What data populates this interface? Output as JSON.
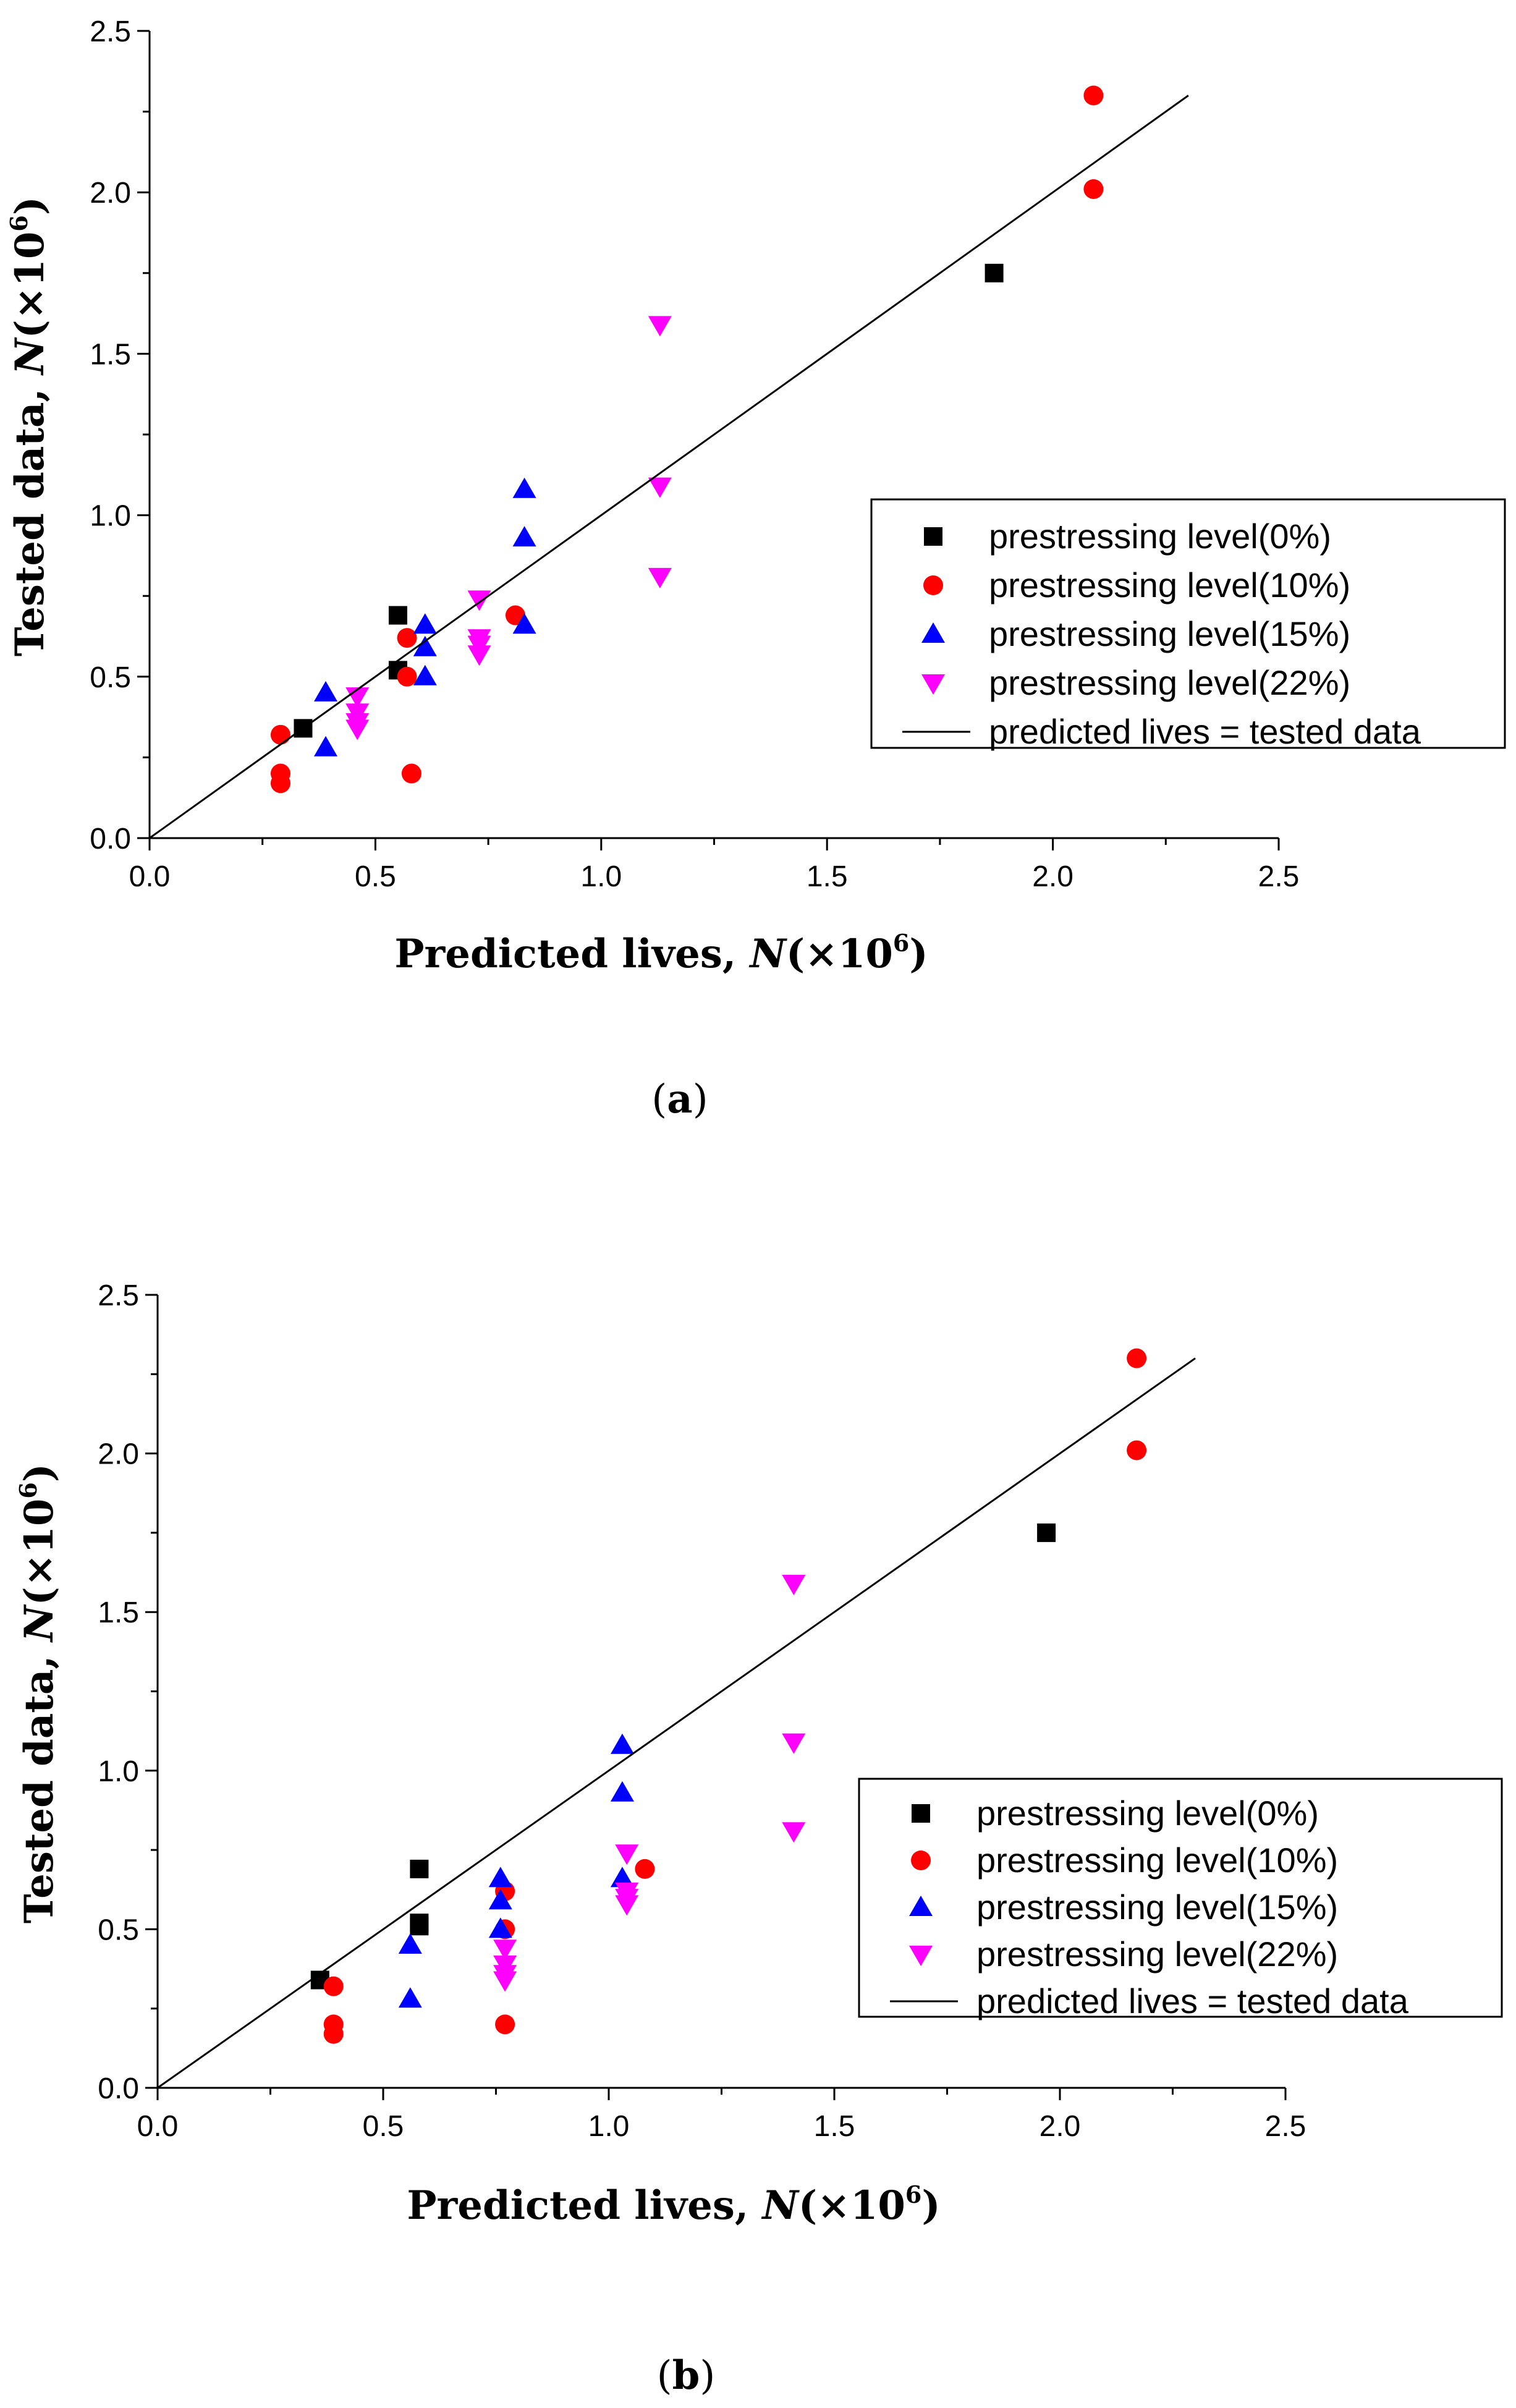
{
  "chart_data": [
    {
      "type": "scatter",
      "panel_label": "a",
      "xlabel": "Predicted lives, ",
      "ylabel": "Tested data, ",
      "n_symbol": "N",
      "unit_text": "(×10",
      "exponent": "6",
      "close_paren": ")",
      "xlim": [
        0,
        2.5
      ],
      "ylim": [
        0,
        2.5
      ],
      "x_ticks": [
        "0.0",
        "0.5",
        "1.0",
        "1.5",
        "2.0",
        "2.5"
      ],
      "y_ticks": [
        "0.0",
        "0.5",
        "1.0",
        "1.5",
        "2.0",
        "2.5"
      ],
      "legend_position": "center-right",
      "series": [
        {
          "name": "prestressing level(0%)",
          "marker": "square",
          "color": "#000000",
          "points": [
            [
              0.34,
              0.34
            ],
            [
              0.55,
              0.52
            ],
            [
              0.55,
              0.69
            ],
            [
              1.87,
              1.75
            ]
          ]
        },
        {
          "name": "prestressing level(10%)",
          "marker": "circle",
          "color": "#ff0000",
          "points": [
            [
              0.29,
              0.32
            ],
            [
              0.29,
              0.2
            ],
            [
              0.29,
              0.17
            ],
            [
              0.57,
              0.62
            ],
            [
              0.57,
              0.5
            ],
            [
              0.58,
              0.2
            ],
            [
              0.81,
              0.69
            ],
            [
              2.09,
              2.3
            ],
            [
              2.09,
              2.01
            ]
          ]
        },
        {
          "name": "prestressing level(15%)",
          "marker": "triangle-up",
          "color": "#0000ff",
          "points": [
            [
              0.39,
              0.45
            ],
            [
              0.39,
              0.28
            ],
            [
              0.61,
              0.66
            ],
            [
              0.61,
              0.59
            ],
            [
              0.61,
              0.5
            ],
            [
              0.83,
              1.08
            ],
            [
              0.83,
              0.93
            ],
            [
              0.83,
              0.66
            ]
          ]
        },
        {
          "name": "prestressing level(22%)",
          "marker": "triangle-down",
          "color": "#ff00ff",
          "points": [
            [
              0.46,
              0.44
            ],
            [
              0.46,
              0.39
            ],
            [
              0.46,
              0.36
            ],
            [
              0.46,
              0.34
            ],
            [
              0.73,
              0.74
            ],
            [
              0.73,
              0.62
            ],
            [
              0.73,
              0.6
            ],
            [
              0.73,
              0.57
            ],
            [
              1.13,
              1.59
            ],
            [
              1.13,
              1.09
            ],
            [
              1.13,
              0.81
            ]
          ]
        },
        {
          "name": "predicted lives = tested data",
          "type": "line",
          "color": "#000000",
          "points": [
            [
              0,
              0
            ],
            [
              2.3,
              2.3
            ]
          ]
        }
      ]
    },
    {
      "type": "scatter",
      "panel_label": "b",
      "xlabel": "Predicted lives, ",
      "ylabel": "Tested data, ",
      "n_symbol": "N",
      "unit_text": "(×10",
      "exponent": "6",
      "close_paren": ")",
      "xlim": [
        0,
        2.5
      ],
      "ylim": [
        0,
        2.5
      ],
      "x_ticks": [
        "0.0",
        "0.5",
        "1.0",
        "1.5",
        "2.0",
        "2.5"
      ],
      "y_ticks": [
        "0.0",
        "0.5",
        "1.0",
        "1.5",
        "2.0",
        "2.5"
      ],
      "legend_position": "center-right",
      "series": [
        {
          "name": "prestressing level(0%)",
          "marker": "square",
          "color": "#000000",
          "points": [
            [
              0.36,
              0.34
            ],
            [
              0.58,
              0.52
            ],
            [
              0.58,
              0.51
            ],
            [
              0.58,
              0.69
            ],
            [
              1.97,
              1.75
            ]
          ]
        },
        {
          "name": "prestressing level(10%)",
          "marker": "circle",
          "color": "#ff0000",
          "points": [
            [
              0.39,
              0.32
            ],
            [
              0.39,
              0.2
            ],
            [
              0.39,
              0.17
            ],
            [
              0.77,
              0.62
            ],
            [
              0.77,
              0.5
            ],
            [
              0.77,
              0.2
            ],
            [
              1.08,
              0.69
            ],
            [
              2.17,
              2.3
            ],
            [
              2.17,
              2.01
            ]
          ]
        },
        {
          "name": "prestressing level(15%)",
          "marker": "triangle-up",
          "color": "#0000ff",
          "points": [
            [
              0.56,
              0.45
            ],
            [
              0.56,
              0.28
            ],
            [
              0.76,
              0.66
            ],
            [
              0.76,
              0.59
            ],
            [
              0.76,
              0.5
            ],
            [
              1.03,
              1.08
            ],
            [
              1.03,
              0.93
            ],
            [
              1.03,
              0.66
            ]
          ]
        },
        {
          "name": "prestressing level(22%)",
          "marker": "triangle-down",
          "color": "#ff00ff",
          "points": [
            [
              0.77,
              0.44
            ],
            [
              0.77,
              0.39
            ],
            [
              0.77,
              0.36
            ],
            [
              0.77,
              0.34
            ],
            [
              1.04,
              0.74
            ],
            [
              1.04,
              0.62
            ],
            [
              1.04,
              0.6
            ],
            [
              1.04,
              0.58
            ],
            [
              1.41,
              1.59
            ],
            [
              1.41,
              1.09
            ],
            [
              1.41,
              0.81
            ]
          ]
        },
        {
          "name": "predicted lives = tested data",
          "type": "line",
          "color": "#000000",
          "points": [
            [
              0,
              0
            ],
            [
              2.3,
              2.3
            ]
          ]
        }
      ]
    }
  ]
}
